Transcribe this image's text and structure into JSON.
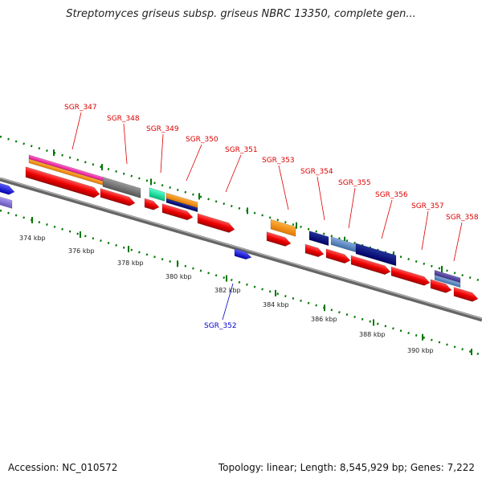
{
  "title": "Streptomyces griseus subsp. griseus NBRC 13350, complete gen...",
  "footer": {
    "accession": "Accession: NC_010572",
    "summary": "Topology: linear; Length: 8,545,929 bp; Genes: 7,222"
  },
  "colors": {
    "backbone": "#888888",
    "forward_gene": "#ff0000",
    "reverse_gene": "#0000ff",
    "tick": "#007700",
    "label_forward": "#dd0000",
    "label_reverse": "#0000cc"
  },
  "scale_labels": [
    "374 kbp",
    "376 kbp",
    "378 kbp",
    "380 kbp",
    "382 kbp",
    "384 kbp",
    "386 kbp",
    "388 kbp",
    "390 kbp"
  ],
  "gene_labels": [
    {
      "text": "SGR_347",
      "strand": "+"
    },
    {
      "text": "SGR_348",
      "strand": "+"
    },
    {
      "text": "SGR_349",
      "strand": "+"
    },
    {
      "text": "SGR_350",
      "strand": "+"
    },
    {
      "text": "SGR_351",
      "strand": "+"
    },
    {
      "text": "SGR_352",
      "strand": "-"
    },
    {
      "text": "SGR_353",
      "strand": "+"
    },
    {
      "text": "SGR_354",
      "strand": "+"
    },
    {
      "text": "SGR_355",
      "strand": "+"
    },
    {
      "text": "SGR_356",
      "strand": "+"
    },
    {
      "text": "SGR_357",
      "strand": "+"
    },
    {
      "text": "SGR_358",
      "strand": "+"
    }
  ]
}
